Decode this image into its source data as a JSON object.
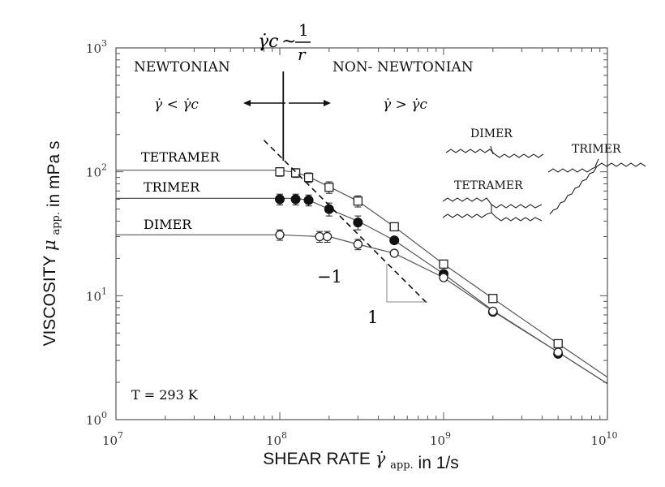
{
  "chart_data": {
    "type": "line",
    "x_scale": "log",
    "y_scale": "log",
    "xlim": [
      10000000.0,
      10000000000.0
    ],
    "ylim": [
      1,
      1000
    ],
    "x_ticks": [
      {
        "value": 10000000.0,
        "base": "10",
        "exp": "7"
      },
      {
        "value": 100000000.0,
        "base": "10",
        "exp": "8"
      },
      {
        "value": 1000000000.0,
        "base": "10",
        "exp": "9"
      },
      {
        "value": 10000000000.0,
        "base": "10",
        "exp": "10"
      }
    ],
    "y_ticks": [
      {
        "value": 1,
        "base": "10",
        "exp": "0"
      },
      {
        "value": 10,
        "base": "10",
        "exp": "1"
      },
      {
        "value": 100,
        "base": "10",
        "exp": "2"
      },
      {
        "value": 1000,
        "base": "10",
        "exp": "3"
      }
    ],
    "xlabel": "SHEAR RATE",
    "xlabel_symbol": "γ̇",
    "xlabel_sub": "app.",
    "xlabel_unit": "in 1/s",
    "ylabel": "VISCOSITY",
    "ylabel_symbol": "μ",
    "ylabel_sub": "app.",
    "ylabel_unit": "in mPa s",
    "grid": false,
    "series": [
      {
        "name": "TETRAMER",
        "marker": "open-square",
        "points": [
          {
            "x": 100000000.0,
            "y": 100,
            "err": 8
          },
          {
            "x": 125000000.0,
            "y": 98,
            "err": 8
          },
          {
            "x": 150000000.0,
            "y": 90,
            "err": 8
          },
          {
            "x": 200000000.0,
            "y": 75,
            "err": 8
          },
          {
            "x": 300000000.0,
            "y": 58,
            "err": 6
          },
          {
            "x": 500000000.0,
            "y": 36,
            "err": 0
          },
          {
            "x": 1000000000.0,
            "y": 18,
            "err": 0
          },
          {
            "x": 2000000000.0,
            "y": 9.5,
            "err": 0
          },
          {
            "x": 5000000000.0,
            "y": 4.1,
            "err": 0
          }
        ],
        "curve": [
          [
            10000000.0,
            103
          ],
          [
            100000000.0,
            103
          ],
          [
            125000000.0,
            99
          ],
          [
            150000000.0,
            91
          ],
          [
            200000000.0,
            76
          ],
          [
            300000000.0,
            58
          ],
          [
            500000000.0,
            36
          ],
          [
            1000000000.0,
            18
          ],
          [
            2000000000.0,
            9.5
          ],
          [
            5000000000.0,
            4.1
          ],
          [
            10000000000.0,
            2.2
          ]
        ]
      },
      {
        "name": "TRIMER",
        "marker": "filled-circle",
        "points": [
          {
            "x": 100000000.0,
            "y": 60,
            "err": 6
          },
          {
            "x": 125000000.0,
            "y": 60,
            "err": 6
          },
          {
            "x": 150000000.0,
            "y": 59,
            "err": 6
          },
          {
            "x": 200000000.0,
            "y": 50,
            "err": 6
          },
          {
            "x": 300000000.0,
            "y": 39,
            "err": 5
          },
          {
            "x": 500000000.0,
            "y": 28,
            "err": 0
          },
          {
            "x": 1000000000.0,
            "y": 15,
            "err": 0
          },
          {
            "x": 2000000000.0,
            "y": 7.4,
            "err": 0
          },
          {
            "x": 5000000000.0,
            "y": 3.4,
            "err": 0
          }
        ],
        "curve": [
          [
            10000000.0,
            61
          ],
          [
            100000000.0,
            61
          ],
          [
            125000000.0,
            61
          ],
          [
            150000000.0,
            59
          ],
          [
            200000000.0,
            50
          ],
          [
            300000000.0,
            40
          ],
          [
            500000000.0,
            28
          ],
          [
            1000000000.0,
            15
          ],
          [
            2000000000.0,
            7.6
          ],
          [
            5000000000.0,
            3.5
          ],
          [
            10000000000.0,
            1.95
          ]
        ]
      },
      {
        "name": "DIMER",
        "marker": "open-circle",
        "points": [
          {
            "x": 100000000.0,
            "y": 31,
            "err": 3
          },
          {
            "x": 175000000.0,
            "y": 30,
            "err": 3
          },
          {
            "x": 195000000.0,
            "y": 30,
            "err": 3
          },
          {
            "x": 300000000.0,
            "y": 26,
            "err": 2.5
          },
          {
            "x": 500000000.0,
            "y": 22,
            "err": 0
          },
          {
            "x": 1000000000.0,
            "y": 14,
            "err": 0
          },
          {
            "x": 2000000000.0,
            "y": 7.5,
            "err": 0
          },
          {
            "x": 5000000000.0,
            "y": 3.5,
            "err": 0
          }
        ],
        "curve": [
          [
            10000000.0,
            31
          ],
          [
            100000000.0,
            31
          ],
          [
            175000000.0,
            30
          ],
          [
            200000000.0,
            30
          ],
          [
            300000000.0,
            26
          ],
          [
            500000000.0,
            22
          ],
          [
            1000000000.0,
            14
          ],
          [
            2000000000.0,
            7.5
          ],
          [
            5000000000.0,
            3.5
          ],
          [
            10000000000.0,
            1.95
          ]
        ]
      }
    ],
    "slope_line": {
      "from": [
        80000000.0,
        180
      ],
      "to": [
        800000000.0,
        8.6
      ]
    },
    "slope_triangle": {
      "corner": [
        450000000.0,
        8.9
      ],
      "top": [
        450000000.0,
        18
      ],
      "right": [
        800000000.0,
        8.9
      ]
    },
    "slope_label": "−1",
    "run_label": "1",
    "critical_x": 105000000.0,
    "temperature_label": "T = 293 K",
    "newtonian_label": "NEWTONIAN",
    "non_newtonian_label": "NON- NEWTONIAN",
    "newtonian_condition": "γ̇ < γ̇c",
    "non_newtonian_condition": "γ̇ > γ̇c",
    "critical_formula": {
      "lhs": "γ̇c",
      "sim": "~",
      "numerator": "1",
      "denominator": "r"
    },
    "molecule_labels": {
      "dimer": "DIMER",
      "trimer": "TRIMER",
      "tetramer": "TETRAMER"
    }
  }
}
